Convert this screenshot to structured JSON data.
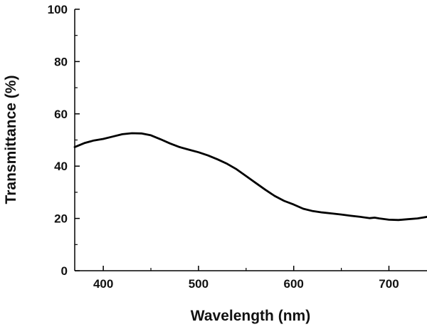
{
  "chart_data": {
    "type": "line",
    "title": "",
    "xlabel": "Wavelength (nm)",
    "ylabel": "Transmittance (%)",
    "xlim": [
      370,
      740
    ],
    "ylim": [
      0,
      100
    ],
    "x_ticks": [
      400,
      500,
      600,
      700
    ],
    "y_ticks": [
      0,
      20,
      40,
      60,
      80,
      100
    ],
    "grid": false,
    "legend": "none",
    "series_color": "#000000",
    "series": [
      {
        "x": [
          370,
          380,
          390,
          400,
          410,
          420,
          430,
          440,
          450,
          460,
          470,
          480,
          490,
          500,
          510,
          520,
          530,
          540,
          550,
          560,
          570,
          580,
          590,
          600,
          610,
          620,
          630,
          640,
          650,
          660,
          670,
          680,
          685,
          690,
          700,
          710,
          720,
          730,
          740
        ],
        "y": [
          47.3,
          48.8,
          49.8,
          50.4,
          51.3,
          52.2,
          52.6,
          52.5,
          51.8,
          50.3,
          48.7,
          47.3,
          46.3,
          45.3,
          44.1,
          42.6,
          40.9,
          38.8,
          36.2,
          33.6,
          31.0,
          28.6,
          26.7,
          25.3,
          23.7,
          22.8,
          22.3,
          21.9,
          21.5,
          21.0,
          20.6,
          20.1,
          20.3,
          20.0,
          19.5,
          19.4,
          19.7,
          20.0,
          20.6
        ]
      }
    ]
  }
}
